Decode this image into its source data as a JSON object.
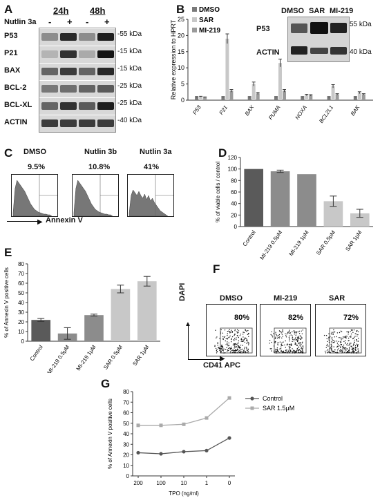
{
  "panelA": {
    "letter": "A",
    "timepoints": [
      "24h",
      "48h"
    ],
    "treatment_label": "Nutlin 3a",
    "lane_signs": [
      "-",
      "+",
      "-",
      "+"
    ],
    "rows": [
      {
        "name": "P53",
        "kda": "55 kDa"
      },
      {
        "name": "P21",
        "kda": "15 kDa"
      },
      {
        "name": "BAX",
        "kda": "15 kDa"
      },
      {
        "name": "BCL-2",
        "kda": "25 kDa"
      },
      {
        "name": "BCL-XL",
        "kda": "25 kDa"
      },
      {
        "name": "ACTIN",
        "kda": "40 kDa"
      }
    ]
  },
  "panelB": {
    "letter": "B",
    "ylabel": "Relative expression to HPRT",
    "legend": [
      "DMSO",
      "SAR",
      "MI-219"
    ],
    "colors": [
      "#7a7a7a",
      "#c8c8c8",
      "#9a9a9a"
    ],
    "inset": {
      "columns": [
        "DMSO",
        "SAR",
        "MI-219"
      ],
      "rows": [
        {
          "name": "P53",
          "kda": "55 kDa"
        },
        {
          "name": "ACTIN",
          "kda": "40 kDa"
        }
      ]
    }
  },
  "panelC": {
    "letter": "C",
    "plots": [
      {
        "title": "DMSO",
        "pct": "9.5%"
      },
      {
        "title": "Nutlin 3b",
        "pct": "10.8%"
      },
      {
        "title": "Nutlin 3a",
        "pct": "41%"
      }
    ],
    "axis_label": "Annexin V"
  },
  "panelD": {
    "letter": "D",
    "ylabel": "% of viable cells / control"
  },
  "panelE": {
    "letter": "E",
    "ylabel": "% of Annexin V positive cells"
  },
  "panelF": {
    "letter": "F",
    "plots": [
      {
        "title": "DMSO",
        "pct": "80%"
      },
      {
        "title": "MI-219",
        "pct": "82%"
      },
      {
        "title": "SAR",
        "pct": "72%"
      }
    ],
    "y_axis_label": "DAPI",
    "x_axis_label": "CD41 APC"
  },
  "panelG": {
    "letter": "G",
    "ylabel": "% of Annexin V positive cells",
    "xlabel": "TPO (ng/ml)"
  },
  "chart_data": [
    {
      "id": "B",
      "type": "bar",
      "categories": [
        "P53",
        "P21",
        "BAX",
        "PUMA",
        "NOXA",
        "BCL2L1",
        "BAK"
      ],
      "series": [
        {
          "name": "DMSO",
          "values": [
            1,
            1,
            1,
            1,
            1,
            1,
            1
          ],
          "err": [
            0.1,
            0.1,
            0.1,
            0.1,
            0.1,
            0.1,
            0.1
          ]
        },
        {
          "name": "SAR",
          "values": [
            1.1,
            19,
            5,
            11.5,
            1.6,
            4.3,
            2.3
          ],
          "err": [
            0.1,
            1.5,
            0.6,
            1.2,
            0.2,
            0.5,
            0.3
          ]
        },
        {
          "name": "MI-219",
          "values": [
            0.9,
            2.9,
            2.1,
            2.9,
            1.5,
            1.8,
            1.8
          ],
          "err": [
            0.1,
            0.4,
            0.3,
            0.4,
            0.2,
            0.2,
            0.2
          ]
        }
      ],
      "ylabel": "Relative expression to HPRT",
      "ylim": [
        0,
        25
      ],
      "yticks": [
        0,
        5,
        10,
        15,
        20,
        25
      ]
    },
    {
      "id": "D",
      "type": "bar",
      "categories": [
        "Control",
        "MI-219 0.5μM",
        "MI-219 1μM",
        "SAR 0.5μM",
        "SAR 1μM"
      ],
      "values": [
        100,
        96,
        91,
        44,
        23
      ],
      "err": [
        0,
        2,
        0,
        9,
        7
      ],
      "colors": [
        "#5a5a5a",
        "#8c8c8c",
        "#8c8c8c",
        "#c8c8c8",
        "#c8c8c8"
      ],
      "ylabel": "% of viable cells / control",
      "ylim": [
        0,
        120
      ],
      "yticks": [
        0,
        20,
        40,
        60,
        80,
        100,
        120
      ]
    },
    {
      "id": "E",
      "type": "bar",
      "categories": [
        "Control",
        "MI-219 0.5μM",
        "MI-219 1μM",
        "SAR 0.5μM",
        "SAR 1μM"
      ],
      "values": [
        22,
        8,
        27,
        54,
        62
      ],
      "err": [
        1.5,
        6,
        1,
        4,
        5
      ],
      "colors": [
        "#5a5a5a",
        "#8c8c8c",
        "#8c8c8c",
        "#c8c8c8",
        "#c8c8c8"
      ],
      "ylabel": "% of Annexin V positive cells",
      "ylim": [
        0,
        80
      ],
      "yticks": [
        0,
        10,
        20,
        30,
        40,
        50,
        60,
        70,
        80
      ]
    },
    {
      "id": "G",
      "type": "line",
      "x": [
        "200",
        "100",
        "10",
        "1",
        "0"
      ],
      "series": [
        {
          "name": "Control",
          "values": [
            22,
            21,
            23,
            24,
            36
          ],
          "color": "#555555"
        },
        {
          "name": "SAR 1.5μM",
          "values": [
            48,
            48,
            49,
            55,
            74
          ],
          "color": "#aaaaaa"
        }
      ],
      "xlabel": "TPO (ng/ml)",
      "ylabel": "% of Annexin V positive cells",
      "ylim": [
        0,
        80
      ],
      "yticks": [
        0,
        10,
        20,
        30,
        40,
        50,
        60,
        70,
        80
      ]
    }
  ]
}
